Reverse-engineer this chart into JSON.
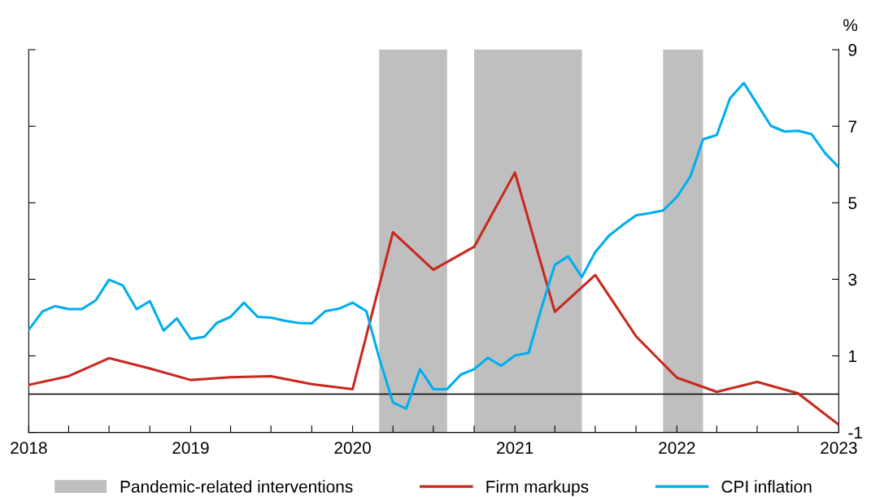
{
  "chart_data": {
    "type": "line",
    "series": [
      {
        "name": "Firm markups",
        "color": "#c8281e",
        "x": [
          "2018-01",
          "2018-04",
          "2018-07",
          "2018-10",
          "2019-01",
          "2019-04",
          "2019-07",
          "2019-10",
          "2020-01",
          "2020-04",
          "2020-07",
          "2020-10",
          "2021-01",
          "2021-04",
          "2021-07",
          "2021-10",
          "2022-01",
          "2022-04",
          "2022-07",
          "2022-10",
          "2023-01"
        ],
        "values": [
          0.24,
          0.47,
          0.94,
          0.67,
          0.37,
          0.44,
          0.47,
          0.26,
          0.13,
          4.23,
          3.25,
          3.85,
          5.79,
          2.15,
          3.11,
          1.51,
          0.43,
          0.06,
          0.32,
          0.02,
          -0.8
        ]
      },
      {
        "name": "CPI inflation",
        "color": "#00aeef",
        "x": [
          "2018-01",
          "2018-02",
          "2018-03",
          "2018-04",
          "2018-05",
          "2018-06",
          "2018-07",
          "2018-08",
          "2018-09",
          "2018-10",
          "2018-11",
          "2018-12",
          "2019-01",
          "2019-02",
          "2019-03",
          "2019-04",
          "2019-05",
          "2019-06",
          "2019-07",
          "2019-08",
          "2019-09",
          "2019-10",
          "2019-11",
          "2019-12",
          "2020-01",
          "2020-02",
          "2020-03",
          "2020-04",
          "2020-05",
          "2020-06",
          "2020-07",
          "2020-08",
          "2020-09",
          "2020-10",
          "2020-11",
          "2020-12",
          "2021-01",
          "2021-02",
          "2021-03",
          "2021-04",
          "2021-05",
          "2021-06",
          "2021-07",
          "2021-08",
          "2021-09",
          "2021-10",
          "2021-11",
          "2021-12",
          "2022-01",
          "2022-02",
          "2022-03",
          "2022-04",
          "2022-05",
          "2022-06",
          "2022-07",
          "2022-08",
          "2022-09",
          "2022-10",
          "2022-11",
          "2022-12",
          "2023-01"
        ],
        "values": [
          1.68,
          2.16,
          2.3,
          2.22,
          2.22,
          2.45,
          2.99,
          2.84,
          2.22,
          2.43,
          1.66,
          1.98,
          1.44,
          1.5,
          1.86,
          2.02,
          2.39,
          2.02,
          2.0,
          1.92,
          1.86,
          1.85,
          2.17,
          2.23,
          2.39,
          2.17,
          0.95,
          -0.22,
          -0.38,
          0.65,
          0.13,
          0.13,
          0.51,
          0.65,
          0.95,
          0.74,
          1.01,
          1.08,
          2.22,
          3.38,
          3.6,
          3.06,
          3.71,
          4.14,
          4.42,
          4.67,
          4.73,
          4.8,
          5.15,
          5.7,
          6.66,
          6.77,
          7.73,
          8.13,
          7.58,
          7.01,
          6.86,
          6.88,
          6.79,
          6.3,
          5.93
        ]
      }
    ],
    "bands": [
      {
        "axis": "x",
        "from": "2020-03",
        "to": "2020-08",
        "label": "Pandemic-related interventions",
        "color": "#bfbfbf"
      },
      {
        "axis": "x",
        "from": "2020-10",
        "to": "2021-06",
        "color": "#bfbfbf"
      },
      {
        "axis": "x",
        "from": "2021-12",
        "to": "2022-03",
        "color": "#bfbfbf"
      }
    ],
    "ref_lines": [
      {
        "axis": "y",
        "value": 0,
        "color": "#000000"
      }
    ],
    "ylabel": "%",
    "xlim": [
      "2018-01",
      "2023-01"
    ],
    "xticks": [
      {
        "value": "2018-01",
        "label": "2018"
      },
      {
        "value": "2018-04",
        "label": null
      },
      {
        "value": "2018-07",
        "label": null
      },
      {
        "value": "2018-10",
        "label": null
      },
      {
        "value": "2019-01",
        "label": "2019"
      },
      {
        "value": "2019-04",
        "label": null
      },
      {
        "value": "2019-07",
        "label": null
      },
      {
        "value": "2019-10",
        "label": null
      },
      {
        "value": "2020-01",
        "label": "2020"
      },
      {
        "value": "2020-04",
        "label": null
      },
      {
        "value": "2020-07",
        "label": null
      },
      {
        "value": "2020-10",
        "label": null
      },
      {
        "value": "2021-01",
        "label": "2021"
      },
      {
        "value": "2021-04",
        "label": null
      },
      {
        "value": "2021-07",
        "label": null
      },
      {
        "value": "2021-10",
        "label": null
      },
      {
        "value": "2022-01",
        "label": "2022"
      },
      {
        "value": "2022-04",
        "label": null
      },
      {
        "value": "2022-07",
        "label": null
      },
      {
        "value": "2022-10",
        "label": null
      },
      {
        "value": "2023-01",
        "label": "2023"
      }
    ],
    "ylim": [
      -1,
      9
    ],
    "yticks": [
      -1,
      1,
      3,
      5,
      7,
      9
    ],
    "legend": "bottom",
    "grid": false,
    "marker": "none",
    "line_style": "solid"
  }
}
